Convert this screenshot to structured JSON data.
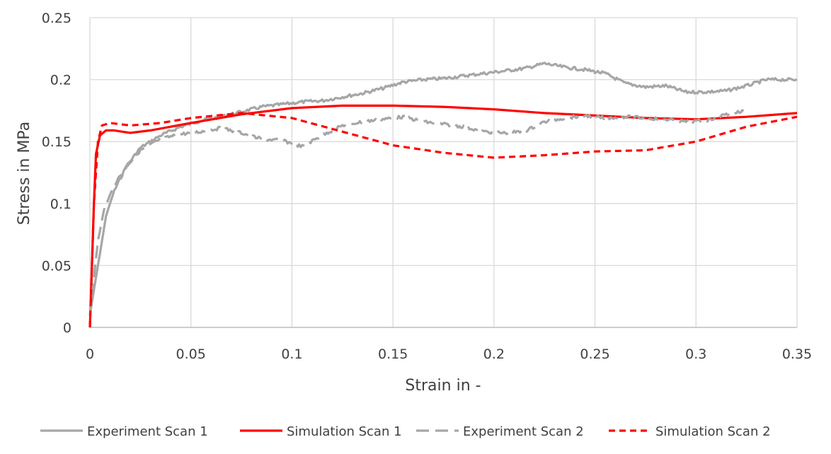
{
  "chart_data": {
    "type": "line",
    "title": "",
    "xlabel": "Strain in -",
    "ylabel": "Stress in MPa",
    "xlim": [
      0,
      0.35
    ],
    "ylim": [
      0,
      0.25
    ],
    "grid": true,
    "legend_position": "bottom",
    "x_ticks": [
      "0",
      "0.05",
      "0.1",
      "0.15",
      "0.2",
      "0.25",
      "0.3",
      "0.35"
    ],
    "y_ticks": [
      "0",
      "0.05",
      "0.1",
      "0.15",
      "0.2",
      "0.25"
    ],
    "x_tick_values": [
      0,
      0.05,
      0.1,
      0.15,
      0.2,
      0.25,
      0.3,
      0.35
    ],
    "y_tick_values": [
      0,
      0.05,
      0.1,
      0.15,
      0.2,
      0.25
    ],
    "series": [
      {
        "name": "Experiment Scan 1",
        "color": "#a6a6a6",
        "dash": "solid",
        "noisy": true,
        "points": [
          [
            0,
            0.01
          ],
          [
            0.002,
            0.03
          ],
          [
            0.005,
            0.06
          ],
          [
            0.008,
            0.09
          ],
          [
            0.012,
            0.11
          ],
          [
            0.018,
            0.13
          ],
          [
            0.025,
            0.145
          ],
          [
            0.035,
            0.155
          ],
          [
            0.045,
            0.162
          ],
          [
            0.055,
            0.167
          ],
          [
            0.065,
            0.17
          ],
          [
            0.075,
            0.174
          ],
          [
            0.085,
            0.178
          ],
          [
            0.095,
            0.18
          ],
          [
            0.105,
            0.182
          ],
          [
            0.115,
            0.183
          ],
          [
            0.125,
            0.186
          ],
          [
            0.135,
            0.189
          ],
          [
            0.145,
            0.193
          ],
          [
            0.155,
            0.198
          ],
          [
            0.165,
            0.2
          ],
          [
            0.175,
            0.201
          ],
          [
            0.185,
            0.203
          ],
          [
            0.195,
            0.205
          ],
          [
            0.205,
            0.207
          ],
          [
            0.215,
            0.209
          ],
          [
            0.225,
            0.213
          ],
          [
            0.235,
            0.21
          ],
          [
            0.245,
            0.208
          ],
          [
            0.255,
            0.205
          ],
          [
            0.265,
            0.197
          ],
          [
            0.275,
            0.194
          ],
          [
            0.285,
            0.195
          ],
          [
            0.295,
            0.19
          ],
          [
            0.305,
            0.19
          ],
          [
            0.315,
            0.191
          ],
          [
            0.325,
            0.195
          ],
          [
            0.335,
            0.2
          ],
          [
            0.35,
            0.2
          ]
        ]
      },
      {
        "name": "Simulation Scan 1",
        "color": "#ff0000",
        "dash": "solid",
        "noisy": false,
        "points": [
          [
            0,
            0
          ],
          [
            0.001,
            0.05
          ],
          [
            0.002,
            0.1
          ],
          [
            0.003,
            0.14
          ],
          [
            0.005,
            0.155
          ],
          [
            0.008,
            0.159
          ],
          [
            0.012,
            0.159
          ],
          [
            0.02,
            0.157
          ],
          [
            0.03,
            0.159
          ],
          [
            0.05,
            0.165
          ],
          [
            0.075,
            0.172
          ],
          [
            0.1,
            0.177
          ],
          [
            0.125,
            0.179
          ],
          [
            0.15,
            0.179
          ],
          [
            0.175,
            0.178
          ],
          [
            0.2,
            0.176
          ],
          [
            0.225,
            0.173
          ],
          [
            0.25,
            0.171
          ],
          [
            0.275,
            0.169
          ],
          [
            0.3,
            0.168
          ],
          [
            0.325,
            0.17
          ],
          [
            0.35,
            0.173
          ]
        ]
      },
      {
        "name": "Experiment Scan 2",
        "color": "#a6a6a6",
        "dash": "long-dash",
        "noisy": true,
        "points": [
          [
            0,
            0.01
          ],
          [
            0.002,
            0.04
          ],
          [
            0.004,
            0.07
          ],
          [
            0.007,
            0.095
          ],
          [
            0.012,
            0.115
          ],
          [
            0.018,
            0.13
          ],
          [
            0.025,
            0.143
          ],
          [
            0.035,
            0.152
          ],
          [
            0.045,
            0.156
          ],
          [
            0.055,
            0.158
          ],
          [
            0.065,
            0.161
          ],
          [
            0.075,
            0.157
          ],
          [
            0.085,
            0.152
          ],
          [
            0.095,
            0.151
          ],
          [
            0.105,
            0.146
          ],
          [
            0.115,
            0.155
          ],
          [
            0.125,
            0.163
          ],
          [
            0.135,
            0.166
          ],
          [
            0.145,
            0.168
          ],
          [
            0.155,
            0.17
          ],
          [
            0.165,
            0.166
          ],
          [
            0.175,
            0.164
          ],
          [
            0.185,
            0.162
          ],
          [
            0.195,
            0.158
          ],
          [
            0.205,
            0.157
          ],
          [
            0.215,
            0.158
          ],
          [
            0.225,
            0.166
          ],
          [
            0.235,
            0.169
          ],
          [
            0.245,
            0.171
          ],
          [
            0.255,
            0.169
          ],
          [
            0.265,
            0.17
          ],
          [
            0.275,
            0.169
          ],
          [
            0.285,
            0.168
          ],
          [
            0.295,
            0.166
          ],
          [
            0.305,
            0.167
          ],
          [
            0.315,
            0.172
          ],
          [
            0.325,
            0.175
          ]
        ]
      },
      {
        "name": "Simulation Scan 2",
        "color": "#ff0000",
        "dash": "short-dash",
        "noisy": false,
        "points": [
          [
            0,
            0
          ],
          [
            0.002,
            0.1
          ],
          [
            0.004,
            0.15
          ],
          [
            0.006,
            0.163
          ],
          [
            0.01,
            0.165
          ],
          [
            0.02,
            0.163
          ],
          [
            0.035,
            0.165
          ],
          [
            0.05,
            0.169
          ],
          [
            0.075,
            0.173
          ],
          [
            0.1,
            0.169
          ],
          [
            0.125,
            0.158
          ],
          [
            0.15,
            0.147
          ],
          [
            0.175,
            0.141
          ],
          [
            0.2,
            0.137
          ],
          [
            0.225,
            0.139
          ],
          [
            0.25,
            0.142
          ],
          [
            0.275,
            0.143
          ],
          [
            0.3,
            0.15
          ],
          [
            0.325,
            0.162
          ],
          [
            0.35,
            0.17
          ]
        ]
      }
    ]
  }
}
